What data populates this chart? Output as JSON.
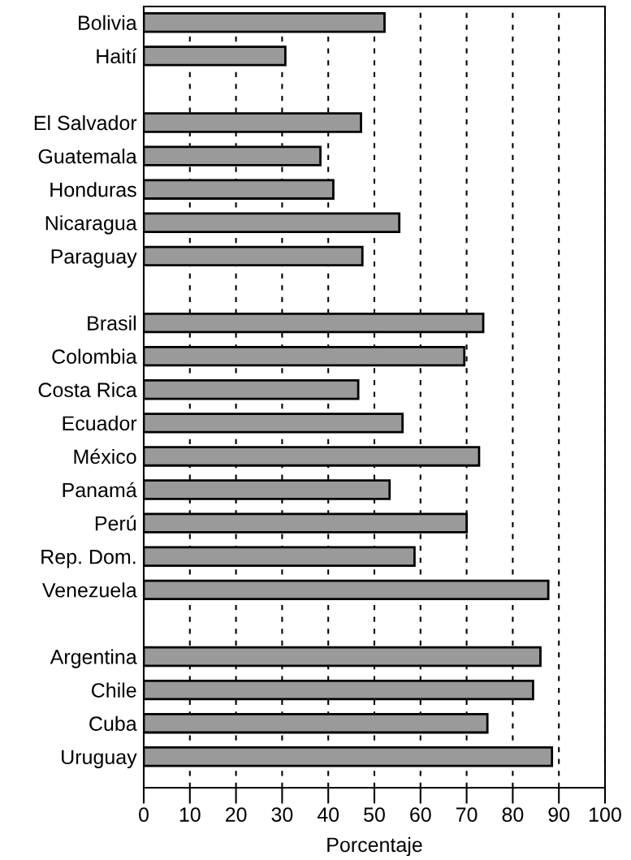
{
  "chart_data": {
    "type": "bar",
    "orientation": "horizontal",
    "xlabel": "Porcentaje",
    "categories": [
      "Bolivia",
      "Haití",
      null,
      "El Salvador",
      "Guatemala",
      "Honduras",
      "Nicaragua",
      "Paraguay",
      null,
      "Brasil",
      "Colombia",
      "Costa Rica",
      "Ecuador",
      "México",
      "Panamá",
      "Perú",
      "Rep. Dom.",
      "Venezuela",
      null,
      "Argentina",
      "Chile",
      "Cuba",
      "Uruguay"
    ],
    "values": [
      52.2,
      30.7,
      null,
      47.1,
      38.3,
      41.1,
      55.4,
      47.4,
      null,
      73.6,
      69.5,
      46.5,
      56.1,
      72.7,
      53.3,
      70,
      58.7,
      87.7,
      null,
      86.0,
      84.4,
      74.5,
      88.5
    ],
    "color": "#9a9a9a",
    "xlim": [
      0,
      100
    ],
    "xticks": [
      0,
      10,
      20,
      30,
      40,
      50,
      60,
      70,
      80,
      90,
      100
    ],
    "grid": "x",
    "legend": false
  }
}
